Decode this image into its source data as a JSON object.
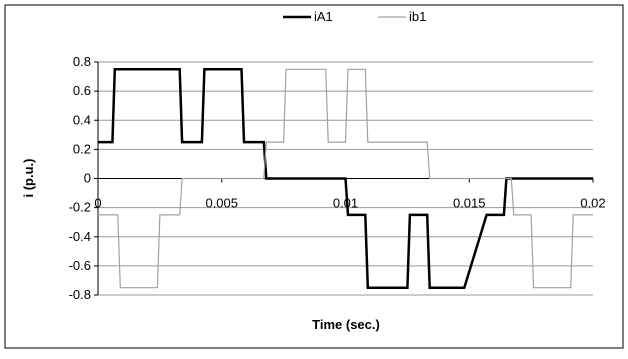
{
  "chart_data": {
    "type": "line",
    "title": "",
    "xlabel": "Time (sec.)",
    "ylabel": "i (p.u.)",
    "xlim": [
      0,
      0.02
    ],
    "ylim": [
      -0.8,
      0.8
    ],
    "grid": true,
    "legend_position": "top-center",
    "x_ticks": [
      "0",
      "0.005",
      "0.01",
      "0.015",
      "0.02"
    ],
    "y_ticks": [
      "0.8",
      "0.6",
      "0.4",
      "0.2",
      "0",
      "-0.2",
      "-0.4",
      "-0.6",
      "-0.8"
    ],
    "series": [
      {
        "name": "iA1",
        "color": "#000000",
        "x": [
          0,
          0.00058,
          0.00068,
          0.00175,
          0.00185,
          0.0033,
          0.0034,
          0.0042,
          0.0043,
          0.0058,
          0.0059,
          0.0067,
          0.0068,
          0.0075,
          0.01,
          0.0101,
          0.0108,
          0.0109,
          0.0125,
          0.0126,
          0.0133,
          0.0134,
          0.0147,
          0.0148,
          0.0157,
          0.0158,
          0.0164,
          0.0165,
          0.02
        ],
        "values": [
          0.25,
          0.25,
          0.75,
          0.75,
          0.75,
          0.75,
          0.25,
          0.25,
          0.75,
          0.75,
          0.25,
          0.25,
          0,
          0,
          0,
          -0.25,
          -0.25,
          -0.75,
          -0.75,
          -0.25,
          -0.25,
          -0.75,
          -0.75,
          -0.75,
          -0.25,
          -0.25,
          -0.25,
          0,
          0
        ]
      },
      {
        "name": "ib1",
        "color": "#a0a0a0",
        "x": [
          0,
          0.0008,
          0.0009,
          0.0024,
          0.0025,
          0.0033,
          0.0034,
          0.0067,
          0.0068,
          0.0075,
          0.0076,
          0.0092,
          0.0093,
          0.01,
          0.0101,
          0.0108,
          0.0109,
          0.0125,
          0.0126,
          0.0133,
          0.0134,
          0.0167,
          0.0168,
          0.0175,
          0.0176,
          0.0191,
          0.0192,
          0.02
        ],
        "values": [
          -0.25,
          -0.25,
          -0.75,
          -0.75,
          -0.25,
          -0.25,
          0,
          0,
          0.25,
          0.25,
          0.75,
          0.75,
          0.25,
          0.25,
          0.75,
          0.75,
          0.25,
          0.25,
          0.25,
          0.25,
          0,
          0,
          -0.25,
          -0.25,
          -0.75,
          -0.75,
          -0.25,
          -0.25
        ]
      }
    ]
  }
}
